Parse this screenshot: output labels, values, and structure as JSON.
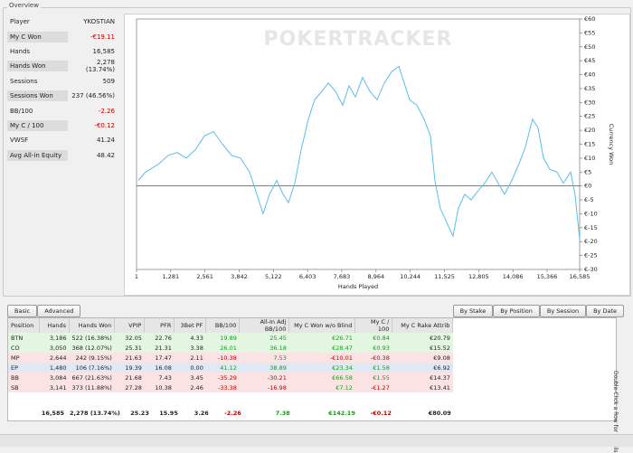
{
  "overview": "Overview",
  "stats": [
    [
      "Player",
      "YKOSTIAN"
    ],
    [
      "My C Won",
      "-€19.11"
    ],
    [
      "Hands",
      "16,585"
    ],
    [
      "Hands Won",
      "2,278 (13.74%)"
    ],
    [
      "Sessions",
      "509"
    ],
    [
      "Sessions Won",
      "237 (46.56%)"
    ],
    [
      "BB/100",
      "-2.26"
    ],
    [
      "My C / 100",
      "-€0.12"
    ],
    [
      "VWSF",
      "41.24"
    ],
    [
      "Avg All-in Equity",
      "48.42"
    ]
  ],
  "chart": {
    "type": "line",
    "watermark": "POKERTRACKER",
    "xlabel": "Hands Played",
    "ylabel": "Currency Won",
    "color": "#5bbdea",
    "x": [
      69,
      339,
      847,
      1185,
      1524,
      1862,
      2201,
      2539,
      2878,
      3216,
      3555,
      3893,
      4232,
      4502,
      4739,
      4976,
      5247,
      5484,
      5687,
      5924,
      6161,
      6431,
      6668,
      6939,
      7176,
      7447,
      7717,
      7954,
      8191,
      8462,
      8733,
      9003,
      9274,
      9545,
      9815,
      10018,
      10221,
      10492,
      10763,
      10999,
      11168,
      11371,
      11608,
      11845,
      12048,
      12285,
      12522,
      12759,
      13030,
      13300,
      13537,
      13774,
      14045,
      14316,
      14553,
      14823,
      15026,
      15230,
      15467,
      15737,
      15974,
      16245,
      16414,
      16585
    ],
    "values": [
      2,
      5,
      8,
      11,
      12,
      10,
      13,
      18,
      19.5,
      15,
      11,
      10,
      5,
      -3,
      -10,
      -3,
      2,
      -3,
      -6,
      1,
      13,
      24,
      31,
      34,
      37,
      34,
      29,
      36,
      32,
      39,
      34,
      31,
      37,
      41,
      43,
      37,
      31,
      29,
      24,
      18,
      2,
      -8,
      -13,
      -18,
      -8,
      -3,
      -5,
      -2,
      1,
      5,
      1,
      -3,
      2,
      8,
      14,
      24,
      21,
      10,
      6,
      5,
      1,
      5,
      -3,
      -19.11
    ],
    "xlim": [
      1,
      16585
    ],
    "ylim": [
      -30,
      60
    ],
    "xticks": [
      1,
      {
        "value": 1281,
        "label": "1,281"
      },
      {
        "value": 2561,
        "label": "2,561"
      },
      {
        "value": 3842,
        "label": "3,842"
      },
      {
        "value": 5122,
        "label": "5,122"
      },
      {
        "value": 6403,
        "label": "6,403"
      },
      {
        "value": 7683,
        "label": "7,683"
      },
      {
        "value": 8964,
        "label": "8,964"
      },
      {
        "value": 10244,
        "label": "10,244"
      },
      {
        "value": 11525,
        "label": "11,525"
      },
      {
        "value": 12805,
        "label": "12,805"
      },
      {
        "value": 14086,
        "label": "14,086"
      },
      {
        "value": 15366,
        "label": "15,366"
      },
      {
        "value": 16585,
        "label": "16,585"
      }
    ],
    "yticks": [
      {
        "value": -30,
        "label": "€-30"
      },
      {
        "value": -25,
        "label": "€-25"
      },
      {
        "value": -20,
        "label": "€-20"
      },
      {
        "value": -15,
        "label": "€-15"
      },
      {
        "value": -10,
        "label": "€-10"
      },
      {
        "value": -5,
        "label": "€-5"
      },
      {
        "value": 0,
        "label": "€0"
      },
      {
        "value": 5,
        "label": "€5"
      },
      {
        "value": 10,
        "label": "€10"
      },
      {
        "value": 15,
        "label": "€15"
      },
      {
        "value": 20,
        "label": "€20"
      },
      {
        "value": 25,
        "label": "€25"
      },
      {
        "value": 30,
        "label": "€30"
      },
      {
        "value": 35,
        "label": "€35"
      },
      {
        "value": 40,
        "label": "€40"
      },
      {
        "value": 45,
        "label": "€45"
      },
      {
        "value": 50,
        "label": "€50"
      },
      {
        "value": 55,
        "label": "€55"
      },
      {
        "value": 60,
        "label": "€60"
      }
    ],
    "zero_line": true
  },
  "tabs": [
    "Basic",
    "Advanced"
  ],
  "group_buttons": [
    "By Stake",
    "By Position",
    "By Session",
    "By Date"
  ],
  "table": {
    "columns": [
      "Position",
      "Hands",
      "Hands Won",
      "VPIP",
      "PFR",
      "3Bet PF",
      "BB/100",
      "All-In Adj BB/100",
      "My C Won w/o Blind",
      "My C / 100",
      "My C Rake Attrib"
    ],
    "rows": [
      [
        "BTN",
        "3,186",
        "522 (16.38%)",
        "32.05",
        "22.76",
        "4.33",
        "19.89",
        "25.45",
        "€26.71",
        "€0.84",
        "€20.79"
      ],
      [
        "CO",
        "3,050",
        "368 (12.07%)",
        "25.31",
        "21.31",
        "3.38",
        "26.01",
        "36.18",
        "€28.47",
        "€0.93",
        "€15.52"
      ],
      [
        "MP",
        "2,644",
        "242 (9.15%)",
        "21.63",
        "17.47",
        "2.11",
        "-10.38",
        "7.53",
        "-€10.01",
        "-€0.38",
        "€9.08"
      ],
      [
        "EP",
        "1,480",
        "106 (7.16%)",
        "19.39",
        "16.08",
        "0.00",
        "41.12",
        "38.89",
        "€23.34",
        "€1.58",
        "€6.92"
      ],
      [
        "BB",
        "3,084",
        "667 (21.63%)",
        "21.68",
        "7.43",
        "3.45",
        "-35.29",
        "-30.21",
        "€66.58",
        "€1.55",
        "€14.37"
      ],
      [
        "SB",
        "3,141",
        "373 (11.88%)",
        "27.28",
        "10.38",
        "2.46",
        "-33.38",
        "-16.98",
        "€7.12",
        "-€1.27",
        "€13.41"
      ]
    ],
    "total": [
      "16,585",
      "2,278 (13.74%)",
      "25.23",
      "15.95",
      "3.26",
      "-2.26",
      "7.38",
      "€142.19",
      "-€0.12",
      "€80.09"
    ]
  },
  "hint": "Double-Click a Row for Details"
}
